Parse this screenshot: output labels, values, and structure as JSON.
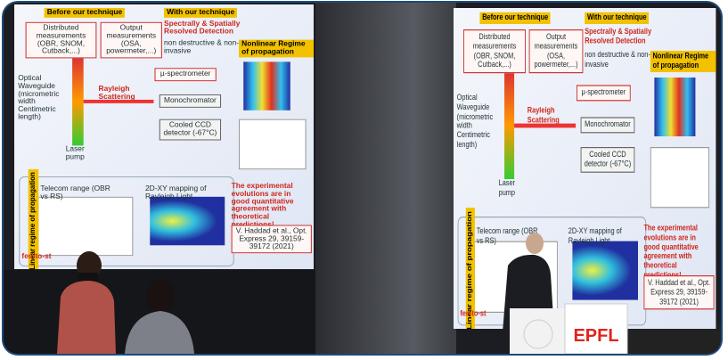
{
  "slide": {
    "before": "Before our technique",
    "distributed": "Distributed measurements (OBR, SNOM, Cutback,...)",
    "output": "Output measurements (OSA, powermeter,...)",
    "with": "With our technique",
    "spectrally": "Spectrally & Spatially Resolved Detection",
    "nondestructive": "non destructive & non-invasive",
    "nonlinear": "Nonlinear Regime of propagation",
    "waveguide": "Optical Waveguide (micrometric width Centimetric length)",
    "rayleigh": "Rayleigh Scattering",
    "spectrometer": "µ-spectrometer",
    "monochromator": "Monochromator",
    "ccd": "Cooled CCD detector (-67°C)",
    "laser": "Laser pump",
    "telecom": "Telecom range (OBR vs RS)",
    "mapping": "2D-XY mapping of Rayleigh Light",
    "agreement": "The experimental evolutions are in good quantitative agreement with theoretical predictions!",
    "reference": "V. Haddad et al., Opt. Express 29, 39159-39172 (2021)",
    "linear": "Linear regime of propagation",
    "logo": "femto-st"
  },
  "podium": "EPFL"
}
